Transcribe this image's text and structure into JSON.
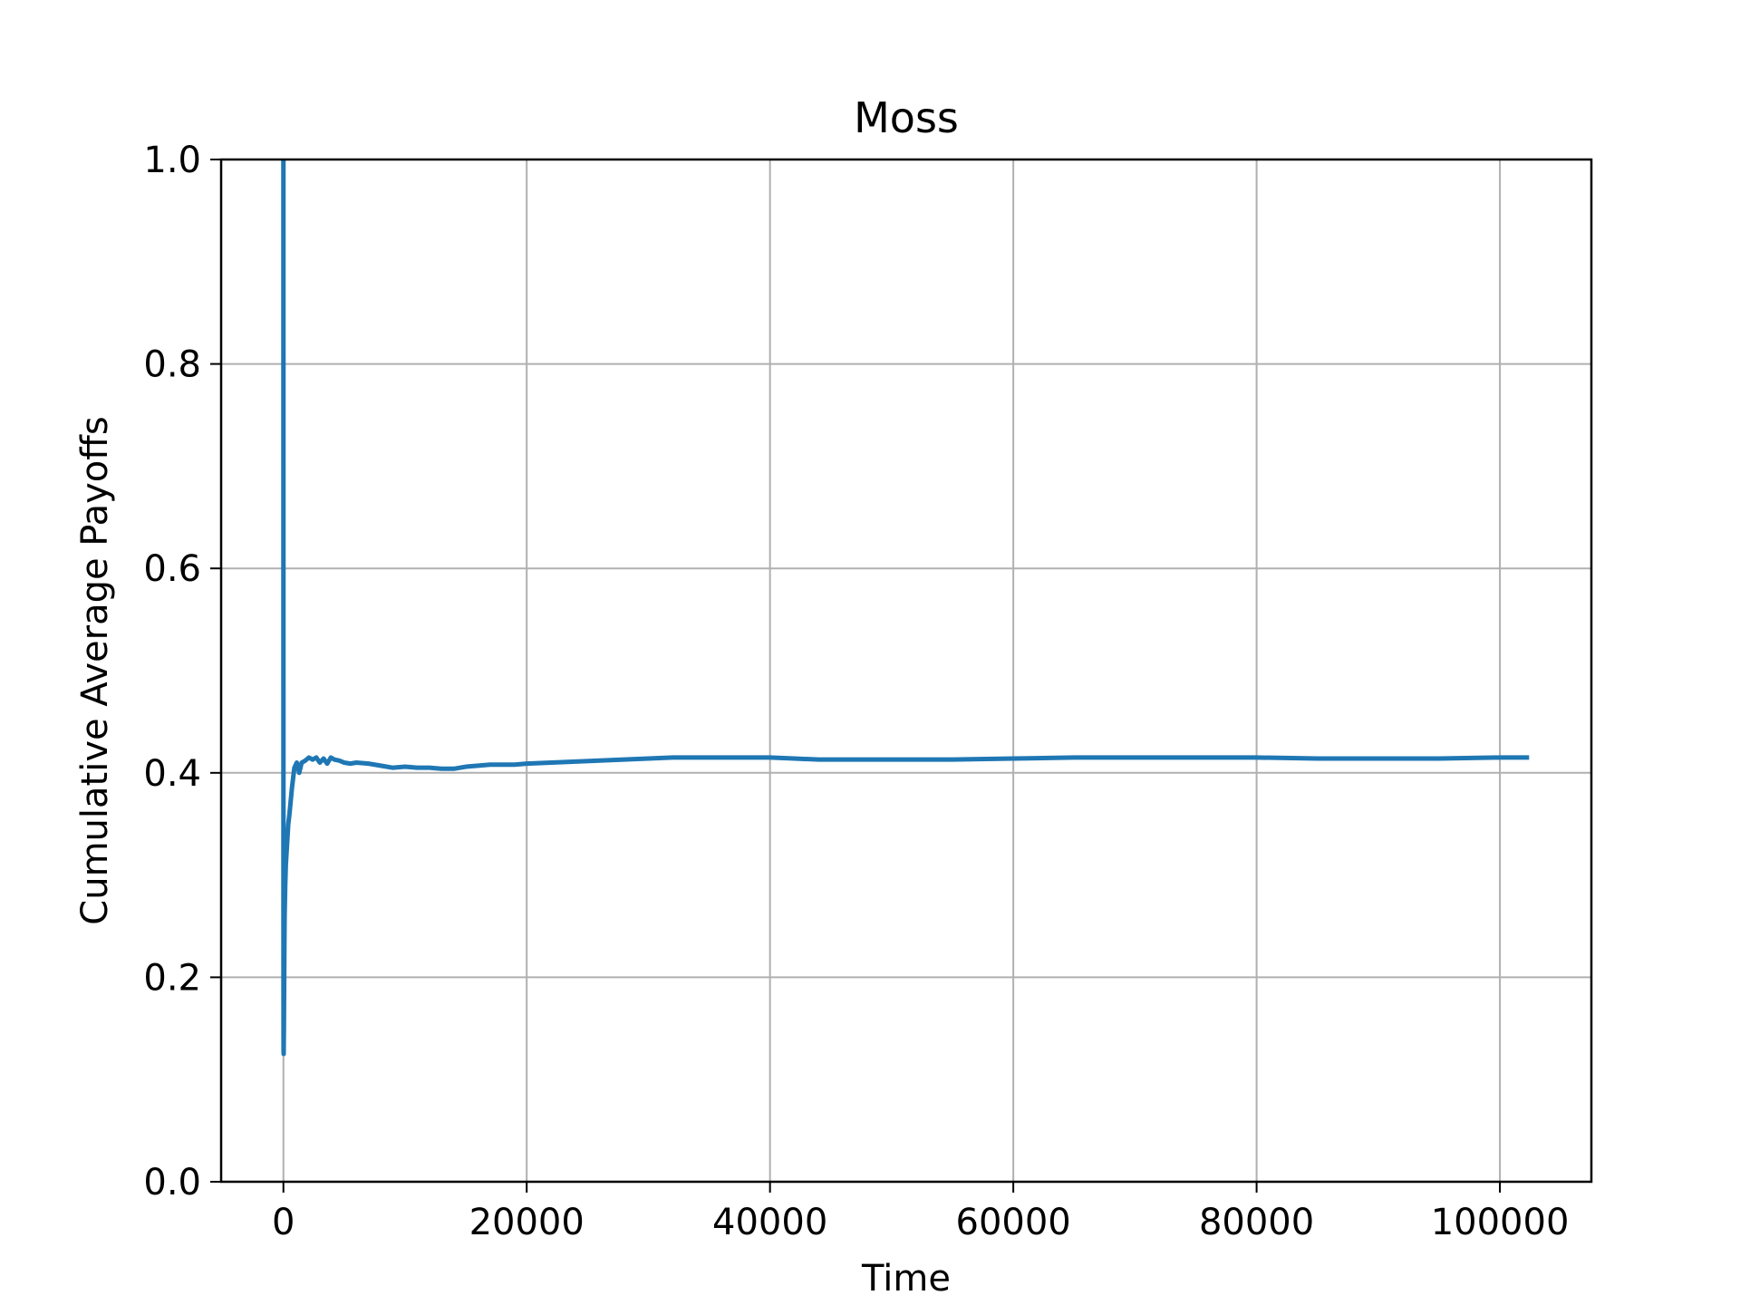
{
  "chart_data": {
    "type": "line",
    "title": "Moss",
    "xlabel": "Time",
    "ylabel": "Cumulative Average Payoffs",
    "xlim": [
      -5120,
      107520
    ],
    "ylim": [
      0.0,
      1.0
    ],
    "x_ticks": [
      0,
      20000,
      40000,
      60000,
      80000,
      100000
    ],
    "x_tick_labels": [
      "0",
      "20000",
      "40000",
      "60000",
      "80000",
      "100000"
    ],
    "y_ticks": [
      0.0,
      0.2,
      0.4,
      0.6,
      0.8,
      1.0
    ],
    "y_tick_labels": [
      "0.0",
      "0.2",
      "0.4",
      "0.6",
      "0.8",
      "1.0"
    ],
    "grid": true,
    "series": [
      {
        "color": "#1f77b4",
        "x": [
          0,
          1,
          2,
          5,
          10,
          20,
          40,
          60,
          80,
          100,
          150,
          200,
          300,
          400,
          500,
          700,
          900,
          1100,
          1300,
          1500,
          1800,
          2100,
          2400,
          2700,
          3000,
          3300,
          3600,
          3900,
          4200,
          4600,
          5000,
          5500,
          6000,
          7000,
          8000,
          9000,
          10000,
          11000,
          12000,
          13000,
          14000,
          15000,
          16000,
          17000,
          18000,
          19000,
          20000,
          22000,
          24000,
          26000,
          28000,
          30000,
          32000,
          34000,
          36000,
          38000,
          40000,
          42000,
          44000,
          46000,
          48000,
          50000,
          55000,
          60000,
          65000,
          70000,
          75000,
          80000,
          85000,
          90000,
          95000,
          100000,
          102400
        ],
        "y": [
          1.0,
          0.6,
          0.35,
          0.22,
          0.13,
          0.125,
          0.15,
          0.19,
          0.23,
          0.26,
          0.29,
          0.31,
          0.33,
          0.35,
          0.36,
          0.385,
          0.405,
          0.41,
          0.4,
          0.41,
          0.412,
          0.415,
          0.413,
          0.415,
          0.41,
          0.414,
          0.409,
          0.415,
          0.413,
          0.412,
          0.41,
          0.409,
          0.41,
          0.409,
          0.407,
          0.405,
          0.406,
          0.405,
          0.405,
          0.404,
          0.404,
          0.406,
          0.407,
          0.408,
          0.408,
          0.408,
          0.409,
          0.41,
          0.411,
          0.412,
          0.413,
          0.414,
          0.415,
          0.415,
          0.415,
          0.415,
          0.415,
          0.414,
          0.413,
          0.413,
          0.413,
          0.413,
          0.413,
          0.414,
          0.415,
          0.415,
          0.415,
          0.415,
          0.414,
          0.414,
          0.414,
          0.415,
          0.415
        ]
      }
    ]
  }
}
